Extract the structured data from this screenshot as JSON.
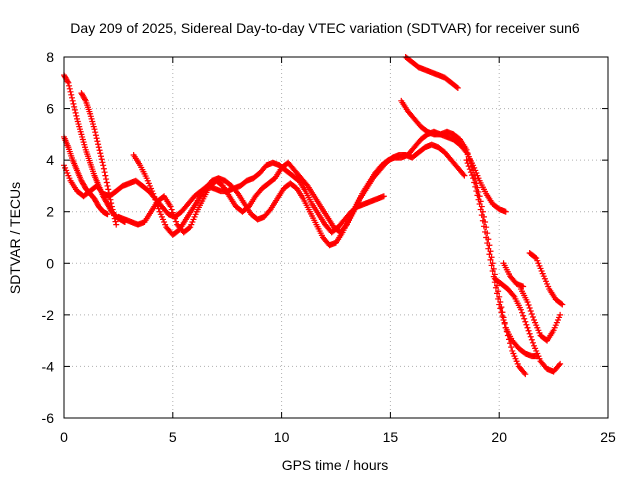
{
  "chart_data": {
    "type": "scatter",
    "title": "Day 209 of 2025, Sidereal Day-to-day VTEC variation (SDTVAR) for receiver sun6",
    "xlabel": "GPS time / hours",
    "ylabel": "SDTVAR / TECUs",
    "xlim": [
      0,
      25
    ],
    "ylim": [
      -6,
      8
    ],
    "xticks": [
      "0",
      "5",
      "10",
      "15",
      "20",
      "25"
    ],
    "yticks": [
      "-6",
      "-4",
      "-2",
      "0",
      "2",
      "4",
      "6",
      "8"
    ],
    "grid": true,
    "marker": "+",
    "color": "#ff0000",
    "series": [
      {
        "x": [
          0.0,
          0.3,
          0.6,
          0.9,
          1.2,
          1.5,
          1.8,
          2.1,
          2.4,
          2.7,
          3.0,
          3.3,
          3.6,
          3.9,
          4.2,
          4.5,
          4.8,
          5.1,
          5.4,
          5.7,
          6.0,
          6.3,
          6.6,
          6.9,
          7.2,
          7.5,
          7.8,
          8.1,
          8.4,
          8.7,
          9.0,
          9.3,
          9.6,
          9.9,
          10.2,
          10.5,
          10.8,
          11.1,
          11.4,
          11.7,
          12.0,
          12.3,
          12.6,
          12.9,
          13.2,
          13.5,
          13.8,
          14.1,
          14.4,
          14.7
        ],
        "y": [
          3.8,
          3.2,
          2.8,
          2.6,
          2.8,
          3.0,
          2.7,
          2.6,
          2.8,
          3.0,
          3.1,
          3.2,
          3.0,
          2.8,
          2.5,
          2.2,
          1.9,
          1.8,
          2.0,
          2.3,
          2.6,
          2.8,
          3.0,
          2.9,
          2.8,
          2.8,
          2.9,
          3.0,
          3.2,
          3.3,
          3.5,
          3.8,
          3.9,
          3.8,
          3.6,
          3.4,
          3.2,
          2.8,
          2.3,
          1.9,
          1.5,
          1.2,
          1.4,
          1.7,
          2.0,
          2.2,
          2.3,
          2.4,
          2.5,
          2.6
        ]
      },
      {
        "x": [
          0.0,
          0.2,
          0.4,
          0.6,
          0.8,
          1.0,
          1.2,
          1.4,
          1.6,
          1.8,
          2.0,
          2.2,
          2.4,
          2.6,
          2.8
        ],
        "y": [
          7.3,
          7.0,
          6.3,
          5.6,
          5.0,
          4.4,
          3.9,
          3.4,
          3.0,
          2.6,
          2.3,
          2.0,
          1.8,
          1.7,
          1.6
        ]
      },
      {
        "x": [
          0.8,
          1.0,
          1.2,
          1.4,
          1.6,
          1.8,
          2.0,
          2.2,
          2.4
        ],
        "y": [
          6.6,
          6.3,
          5.8,
          5.2,
          4.5,
          3.8,
          3.0,
          2.2,
          1.5
        ]
      },
      {
        "x": [
          0.0,
          0.2,
          0.4,
          0.6,
          0.8,
          1.0,
          1.2,
          1.4,
          1.6,
          1.8,
          2.0
        ],
        "y": [
          4.9,
          4.5,
          4.0,
          3.6,
          3.2,
          2.9,
          2.7,
          2.5,
          2.2,
          2.0,
          1.9
        ]
      },
      {
        "x": [
          2.5,
          2.8,
          3.1,
          3.4,
          3.7,
          4.0,
          4.3,
          4.6,
          4.9,
          5.2,
          5.5,
          5.8,
          6.1,
          6.4,
          6.7,
          7.0,
          7.3,
          7.6,
          7.9,
          8.2,
          8.5,
          8.8,
          9.1,
          9.4,
          9.7,
          10.0,
          10.3,
          10.6,
          10.9,
          11.2,
          11.5,
          11.8,
          12.1,
          12.4,
          12.7,
          13.0,
          13.3,
          13.6,
          13.9,
          14.2,
          14.5,
          14.8,
          15.1,
          15.4,
          15.7,
          16.0,
          16.3,
          16.6,
          16.9,
          17.2,
          17.5,
          17.8,
          18.1,
          18.4
        ],
        "y": [
          1.8,
          1.7,
          1.6,
          1.5,
          1.6,
          2.0,
          2.4,
          2.6,
          2.2,
          1.5,
          1.2,
          1.4,
          2.0,
          2.5,
          3.0,
          3.2,
          3.0,
          2.6,
          2.2,
          2.0,
          2.2,
          2.6,
          2.9,
          3.1,
          3.3,
          3.7,
          3.9,
          3.6,
          3.3,
          3.0,
          2.6,
          2.2,
          1.8,
          1.4,
          1.2,
          1.5,
          2.0,
          2.5,
          2.9,
          3.3,
          3.6,
          3.9,
          4.1,
          4.2,
          4.2,
          4.1,
          4.3,
          4.5,
          4.6,
          4.5,
          4.3,
          4.0,
          3.7,
          3.4
        ]
      },
      {
        "x": [
          3.2,
          3.5,
          3.8,
          4.1,
          4.4,
          4.7,
          5.0,
          5.3,
          5.6,
          5.9,
          6.2,
          6.5,
          6.8,
          7.1,
          7.4,
          7.7,
          8.0,
          8.3,
          8.6,
          8.9,
          9.2,
          9.5,
          9.8,
          10.1,
          10.4,
          10.7,
          11.0,
          11.3,
          11.6,
          11.9,
          12.2,
          12.5,
          12.8,
          13.1,
          13.4,
          13.7,
          14.0,
          14.3,
          14.6,
          14.9,
          15.2,
          15.5,
          15.8,
          16.1,
          16.4,
          16.7,
          17.0,
          17.3,
          17.6,
          17.9,
          18.2,
          18.5,
          18.8,
          19.1,
          19.4,
          19.7,
          20.0,
          20.3
        ],
        "y": [
          4.2,
          3.8,
          3.3,
          2.7,
          2.0,
          1.4,
          1.1,
          1.3,
          1.7,
          2.1,
          2.5,
          2.9,
          3.2,
          3.3,
          3.2,
          3.0,
          2.7,
          2.3,
          1.9,
          1.7,
          1.8,
          2.1,
          2.5,
          2.9,
          3.1,
          2.9,
          2.5,
          2.0,
          1.5,
          1.0,
          0.7,
          0.8,
          1.2,
          1.7,
          2.2,
          2.7,
          3.1,
          3.5,
          3.8,
          4.0,
          4.1,
          4.1,
          4.2,
          4.5,
          4.8,
          5.0,
          5.1,
          5.0,
          4.9,
          4.8,
          4.6,
          4.3,
          3.8,
          3.2,
          2.7,
          2.3,
          2.1,
          2.0
        ]
      },
      {
        "x": [
          15.5,
          15.8,
          16.1,
          16.4,
          16.7,
          17.0,
          17.3,
          17.6,
          17.9
        ],
        "y": [
          6.3,
          5.9,
          5.6,
          5.3,
          5.1,
          5.0,
          5.0,
          5.1,
          5.0
        ]
      },
      {
        "x": [
          15.7,
          16.0,
          16.3,
          16.6,
          16.9,
          17.2,
          17.5,
          17.8,
          18.1
        ],
        "y": [
          8.0,
          7.8,
          7.6,
          7.5,
          7.4,
          7.3,
          7.2,
          7.0,
          6.8
        ]
      },
      {
        "x": [
          17.9,
          18.2,
          18.5,
          18.8,
          19.1,
          19.4,
          19.7,
          20.0,
          20.3,
          20.6,
          20.9,
          21.2
        ],
        "y": [
          5.0,
          4.8,
          4.4,
          3.6,
          2.6,
          1.4,
          0.0,
          -1.3,
          -2.5,
          -3.4,
          -4.0,
          -4.3
        ]
      },
      {
        "x": [
          18.5,
          18.8,
          19.1,
          19.4,
          19.7,
          20.0,
          20.3,
          20.6,
          20.9,
          21.2,
          21.5,
          21.8
        ],
        "y": [
          4.0,
          3.3,
          2.3,
          1.0,
          -0.3,
          -1.6,
          -2.5,
          -3.0,
          -3.3,
          -3.5,
          -3.6,
          -3.6
        ]
      },
      {
        "x": [
          19.8,
          20.1,
          20.4,
          20.7,
          21.0,
          21.3,
          21.6,
          21.9,
          22.2,
          22.5,
          22.8
        ],
        "y": [
          -0.6,
          -0.8,
          -1.0,
          -1.3,
          -1.8,
          -2.5,
          -3.2,
          -3.8,
          -4.1,
          -4.2,
          -3.9
        ]
      },
      {
        "x": [
          21.4,
          21.7,
          22.0,
          22.3,
          22.6,
          22.9
        ],
        "y": [
          0.4,
          0.2,
          -0.4,
          -1.0,
          -1.4,
          -1.6
        ]
      },
      {
        "x": [
          21.0,
          21.3,
          21.6,
          21.9,
          22.2,
          22.5,
          22.8
        ],
        "y": [
          -1.0,
          -1.5,
          -2.2,
          -2.8,
          -3.0,
          -2.6,
          -2.0
        ]
      },
      {
        "x": [
          20.2,
          20.5,
          20.8,
          21.1
        ],
        "y": [
          0.0,
          -0.5,
          -0.8,
          -0.9
        ]
      }
    ]
  }
}
